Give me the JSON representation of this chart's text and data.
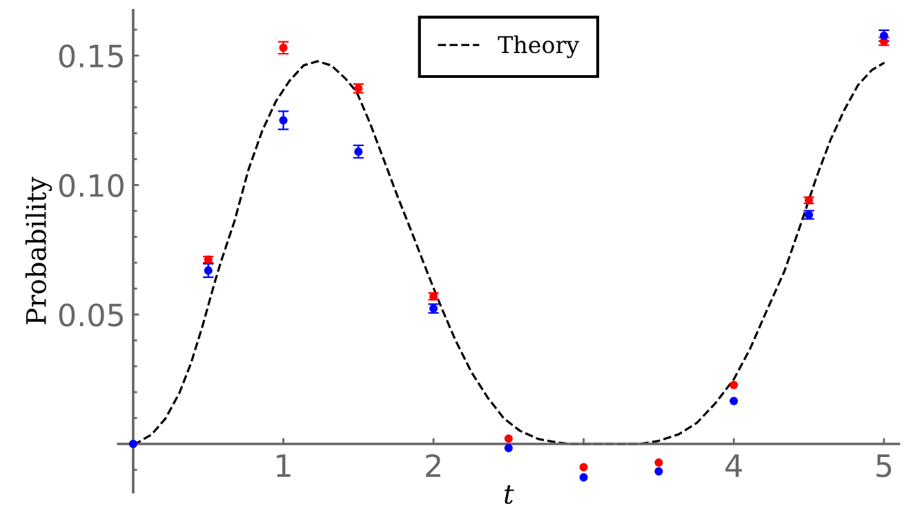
{
  "chart_data": {
    "type": "scatter",
    "xlabel": "t",
    "ylabel": "Probability",
    "xlim": [
      -0.1,
      5.1
    ],
    "ylim": [
      -0.0186,
      0.1675
    ],
    "xticks": [
      1,
      2,
      {
        "value": 3,
        "label": null
      },
      4,
      5
    ],
    "yticks": [
      {
        "value": -0.01,
        "label": null
      },
      {
        "value": 0.01,
        "label": null
      },
      {
        "value": 0.02,
        "label": null
      },
      {
        "value": 0.03,
        "label": null
      },
      {
        "value": 0.04,
        "label": null
      },
      0.05,
      {
        "value": 0.06,
        "label": null
      },
      {
        "value": 0.07,
        "label": null
      },
      {
        "value": 0.08,
        "label": null
      },
      {
        "value": 0.09,
        "label": null
      },
      {
        "value": 0.1,
        "label": "0.10"
      },
      {
        "value": 0.11,
        "label": null
      },
      {
        "value": 0.12,
        "label": null
      },
      {
        "value": 0.13,
        "label": null
      },
      {
        "value": 0.14,
        "label": null
      },
      0.15,
      {
        "value": 0.16,
        "label": null
      }
    ],
    "legend": "top",
    "marker": "circle",
    "series": [
      {
        "name": "Theory",
        "type": "line",
        "color": "#000000",
        "line_style": "dashed",
        "marker": "none",
        "x": [
          0,
          0.032,
          0.124,
          0.216,
          0.308,
          0.385,
          0.461,
          0.538,
          0.584,
          0.676,
          0.767,
          0.859,
          0.951,
          1.043,
          1.135,
          1.227,
          1.319,
          1.411,
          1.488,
          1.58,
          1.672,
          1.764,
          1.855,
          1.962,
          2.054,
          2.146,
          2.253,
          2.361,
          2.468,
          2.575,
          2.698,
          2.82,
          2.912,
          3.372,
          3.494,
          3.632,
          3.755,
          3.877,
          4.0,
          4.107,
          4.214,
          4.337,
          4.459,
          4.551,
          4.643,
          4.735,
          4.827,
          4.919,
          5.003
        ],
        "values": [
          0,
          0.0006,
          0.0037,
          0.0099,
          0.0197,
          0.0312,
          0.0454,
          0.0614,
          0.0703,
          0.0863,
          0.1058,
          0.1209,
          0.1324,
          0.1404,
          0.1462,
          0.1478,
          0.1462,
          0.1413,
          0.136,
          0.1235,
          0.1093,
          0.0951,
          0.0818,
          0.0658,
          0.0525,
          0.0401,
          0.0277,
          0.0179,
          0.0099,
          0.0051,
          0.0019,
          0.0006,
          0,
          0,
          0.0011,
          0.0037,
          0.0082,
          0.0157,
          0.025,
          0.0366,
          0.0508,
          0.0667,
          0.0871,
          0.1031,
          0.1173,
          0.1289,
          0.1386,
          0.1444,
          0.1473
        ]
      },
      {
        "color": "#ff0000",
        "x": [
          0.5,
          1,
          1.5,
          2,
          2.5,
          3,
          3.5,
          4,
          4.5,
          5
        ],
        "values": [
          0.0712,
          0.153,
          0.1373,
          0.057,
          0.0021,
          -0.009,
          -0.0072,
          0.0228,
          0.0941,
          0.1555
        ],
        "errors": [
          0.0012,
          0.0023,
          0.0017,
          0.0013,
          null,
          null,
          null,
          null,
          0.0012,
          0.0015
        ]
      },
      {
        "color": "#0000ff",
        "x": [
          0,
          0.5,
          1,
          1.5,
          2,
          2.5,
          3,
          3.5,
          4,
          4.5,
          5
        ],
        "values": [
          0,
          0.067,
          0.125,
          0.1129,
          0.0523,
          -0.0016,
          -0.0129,
          -0.0106,
          0.0166,
          0.0885,
          0.1577
        ],
        "errors": [
          null,
          0.0026,
          0.0035,
          0.0024,
          0.0017,
          null,
          null,
          null,
          null,
          0.0016,
          0.0021
        ]
      }
    ]
  }
}
